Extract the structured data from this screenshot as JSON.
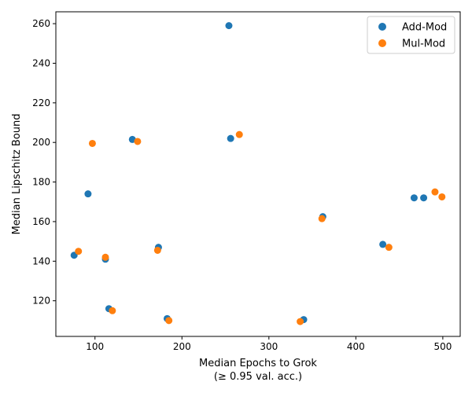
{
  "chart_data": {
    "type": "scatter",
    "title": "",
    "xlabel": "Median Epochs to Grok",
    "xlabel_sub": "(≥ 0.95 val. acc.)",
    "ylabel": "Median Lipschitz Bound",
    "xlim": [
      55,
      520
    ],
    "ylim": [
      102,
      266
    ],
    "xticks": [
      100,
      200,
      300,
      400,
      500
    ],
    "yticks": [
      120,
      140,
      160,
      180,
      200,
      220,
      240,
      260
    ],
    "grid": false,
    "legend_position": "top-right",
    "series": [
      {
        "name": "Add-Mod",
        "color": "#1f77b4",
        "points": [
          {
            "x": 76,
            "y": 143
          },
          {
            "x": 92,
            "y": 174
          },
          {
            "x": 112,
            "y": 141
          },
          {
            "x": 116,
            "y": 116
          },
          {
            "x": 143,
            "y": 201.5
          },
          {
            "x": 173,
            "y": 147
          },
          {
            "x": 183,
            "y": 111
          },
          {
            "x": 254,
            "y": 259
          },
          {
            "x": 256,
            "y": 202
          },
          {
            "x": 340,
            "y": 110.5
          },
          {
            "x": 362,
            "y": 162.5
          },
          {
            "x": 431,
            "y": 148.5
          },
          {
            "x": 467,
            "y": 172
          },
          {
            "x": 478,
            "y": 172
          }
        ]
      },
      {
        "name": "Mul-Mod",
        "color": "#ff7f0e",
        "points": [
          {
            "x": 81,
            "y": 145
          },
          {
            "x": 97,
            "y": 199.5
          },
          {
            "x": 112,
            "y": 142
          },
          {
            "x": 120,
            "y": 115
          },
          {
            "x": 149,
            "y": 200.5
          },
          {
            "x": 172,
            "y": 145.5
          },
          {
            "x": 185,
            "y": 110
          },
          {
            "x": 266,
            "y": 204
          },
          {
            "x": 336,
            "y": 109.5
          },
          {
            "x": 361,
            "y": 161.5
          },
          {
            "x": 438,
            "y": 147
          },
          {
            "x": 491,
            "y": 175
          },
          {
            "x": 499,
            "y": 172.5
          }
        ]
      }
    ]
  }
}
